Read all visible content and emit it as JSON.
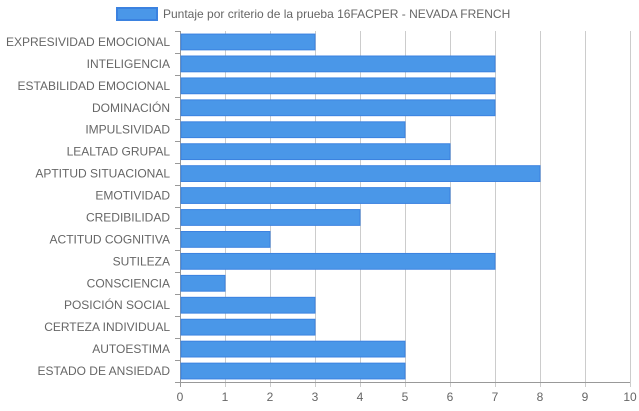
{
  "chart_data": {
    "type": "bar",
    "orientation": "horizontal",
    "legend": {
      "label": "Puntaje por criterio de la prueba 16FACPER - NEVADA FRENCH",
      "placement": "top-center"
    },
    "categories": [
      "EXPRESIVIDAD EMOCIONAL",
      "INTELIGENCIA",
      "ESTABILIDAD EMOCIONAL",
      "DOMINACIÓN",
      "IMPULSIVIDAD",
      "LEALTAD GRUPAL",
      "APTITUD SITUACIONAL",
      "EMOTIVIDAD",
      "CREDIBILIDAD",
      "ACTITUD COGNITIVA",
      "SUTILEZA",
      "CONSCIENCIA",
      "POSICIÓN SOCIAL",
      "CERTEZA INDIVIDUAL",
      "AUTOESTIMA",
      "ESTADO DE ANSIEDAD"
    ],
    "series": [
      {
        "name": "Puntaje por criterio de la prueba 16FACPER - NEVADA FRENCH",
        "values": [
          3,
          7,
          7,
          7,
          5,
          6,
          8,
          6,
          4,
          2,
          7,
          1,
          3,
          3,
          5,
          5
        ]
      }
    ],
    "xlim": [
      0,
      10
    ],
    "xticks": [
      "0",
      "1",
      "2",
      "3",
      "4",
      "5",
      "6",
      "7",
      "8",
      "9",
      "10"
    ],
    "grid": true,
    "colors": {
      "bar_fill": "#4a97e8",
      "bar_stroke": "#3b82e0",
      "grid": "#cccccc",
      "axis": "#999999",
      "text": "#666666"
    }
  }
}
